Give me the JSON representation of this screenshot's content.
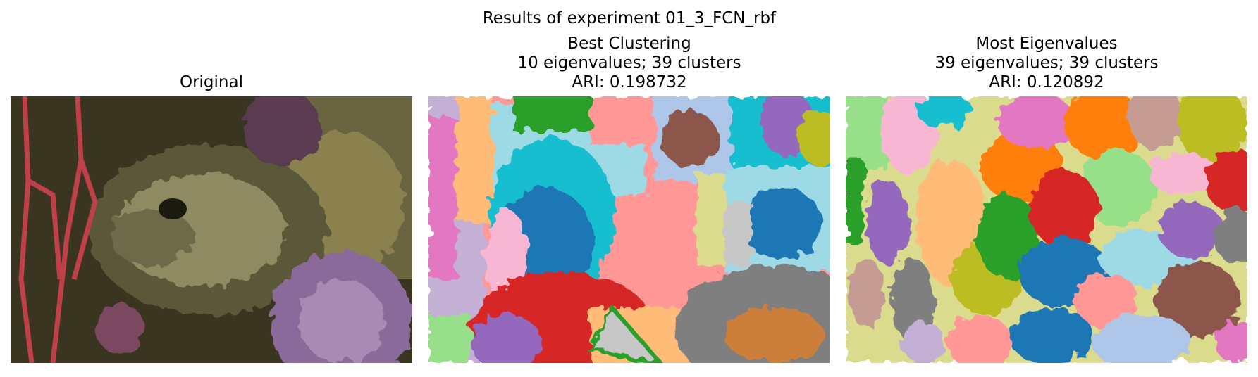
{
  "suptitle": "Results of experiment 01_3_FCN_rbf",
  "panels": [
    {
      "title_lines": [
        "Original"
      ]
    },
    {
      "title_lines": [
        "Best Clustering",
        "10 eigenvalues; 39 clusters",
        "ARI: 0.198732"
      ]
    },
    {
      "title_lines": [
        "Most Eigenvalues",
        "39 eigenvalues; 39 clusters",
        "ARI: 0.120892"
      ]
    }
  ]
}
